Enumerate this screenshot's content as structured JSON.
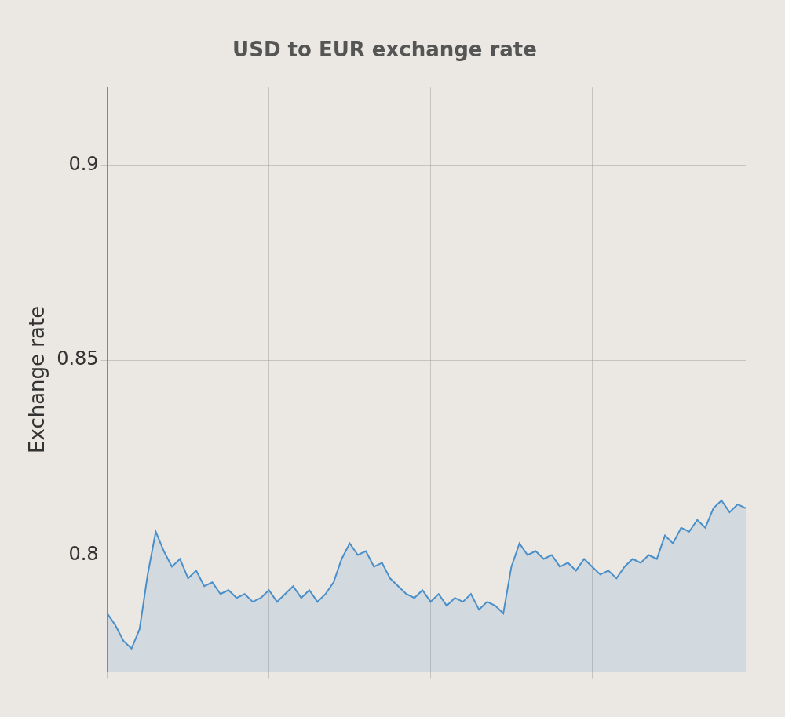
{
  "chart_data": {
    "type": "line",
    "title": "USD to EUR exchange rate",
    "y_label": "Exchange rate",
    "categories": [
      null,
      null,
      null,
      null,
      null,
      null,
      null,
      null,
      null,
      null,
      null,
      null,
      null,
      null,
      null,
      null,
      null,
      null,
      null,
      null,
      null,
      null,
      null,
      null,
      null,
      null,
      null,
      null,
      null,
      null,
      null,
      null,
      null,
      null,
      null,
      null,
      null,
      null,
      null,
      null,
      null,
      null,
      null,
      null,
      null,
      null,
      null,
      null,
      null,
      null,
      null,
      null,
      null,
      null,
      null,
      null,
      null,
      null,
      null,
      null,
      null,
      null,
      null,
      null,
      null,
      null,
      null,
      null,
      null,
      null,
      null,
      null,
      null,
      null,
      null,
      null,
      null,
      null,
      null,
      null
    ],
    "values": [
      0.785,
      0.782,
      0.778,
      0.776,
      0.781,
      0.795,
      0.806,
      0.801,
      0.797,
      0.799,
      0.794,
      0.796,
      0.792,
      0.793,
      0.79,
      0.791,
      0.789,
      0.79,
      0.788,
      0.789,
      0.791,
      0.788,
      0.79,
      0.792,
      0.789,
      0.791,
      0.788,
      0.79,
      0.793,
      0.799,
      0.803,
      0.8,
      0.801,
      0.797,
      0.798,
      0.794,
      0.792,
      0.79,
      0.789,
      0.791,
      0.788,
      0.79,
      0.787,
      0.789,
      0.788,
      0.79,
      0.786,
      0.788,
      0.787,
      0.785,
      0.797,
      0.803,
      0.8,
      0.801,
      0.799,
      0.8,
      0.797,
      0.798,
      0.796,
      0.799,
      0.797,
      0.795,
      0.796,
      0.794,
      0.797,
      0.799,
      0.798,
      0.8,
      0.799,
      0.805,
      0.803,
      0.807,
      0.806,
      0.809,
      0.807,
      0.812,
      0.814,
      0.811,
      0.813,
      0.812
    ],
    "color": "#4a8fc9",
    "ylim": [
      0.77,
      0.92
    ],
    "yticks": [
      0.8,
      0.85,
      0.9
    ],
    "grid": true,
    "tick_labels": "y"
  }
}
